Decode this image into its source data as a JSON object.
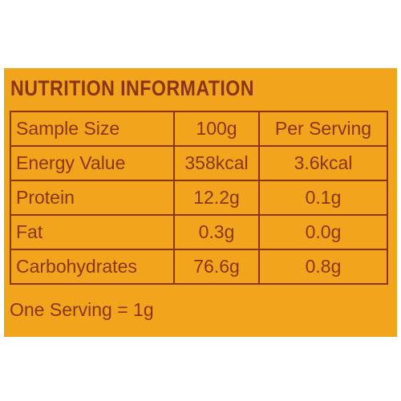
{
  "header": {
    "title": "NUTRITION INFORMATION"
  },
  "table": {
    "rows": [
      [
        "Sample Size",
        "100g",
        "Per Serving"
      ],
      [
        "Energy Value",
        "358kcal",
        "3.6kcal"
      ],
      [
        "Protein",
        "12.2g",
        "0.1g"
      ],
      [
        "Fat",
        "0.3g",
        "0.0g"
      ],
      [
        "Carbohydrates",
        "76.6g",
        "0.8g"
      ]
    ]
  },
  "footer": {
    "note": "One Serving = 1g"
  }
}
